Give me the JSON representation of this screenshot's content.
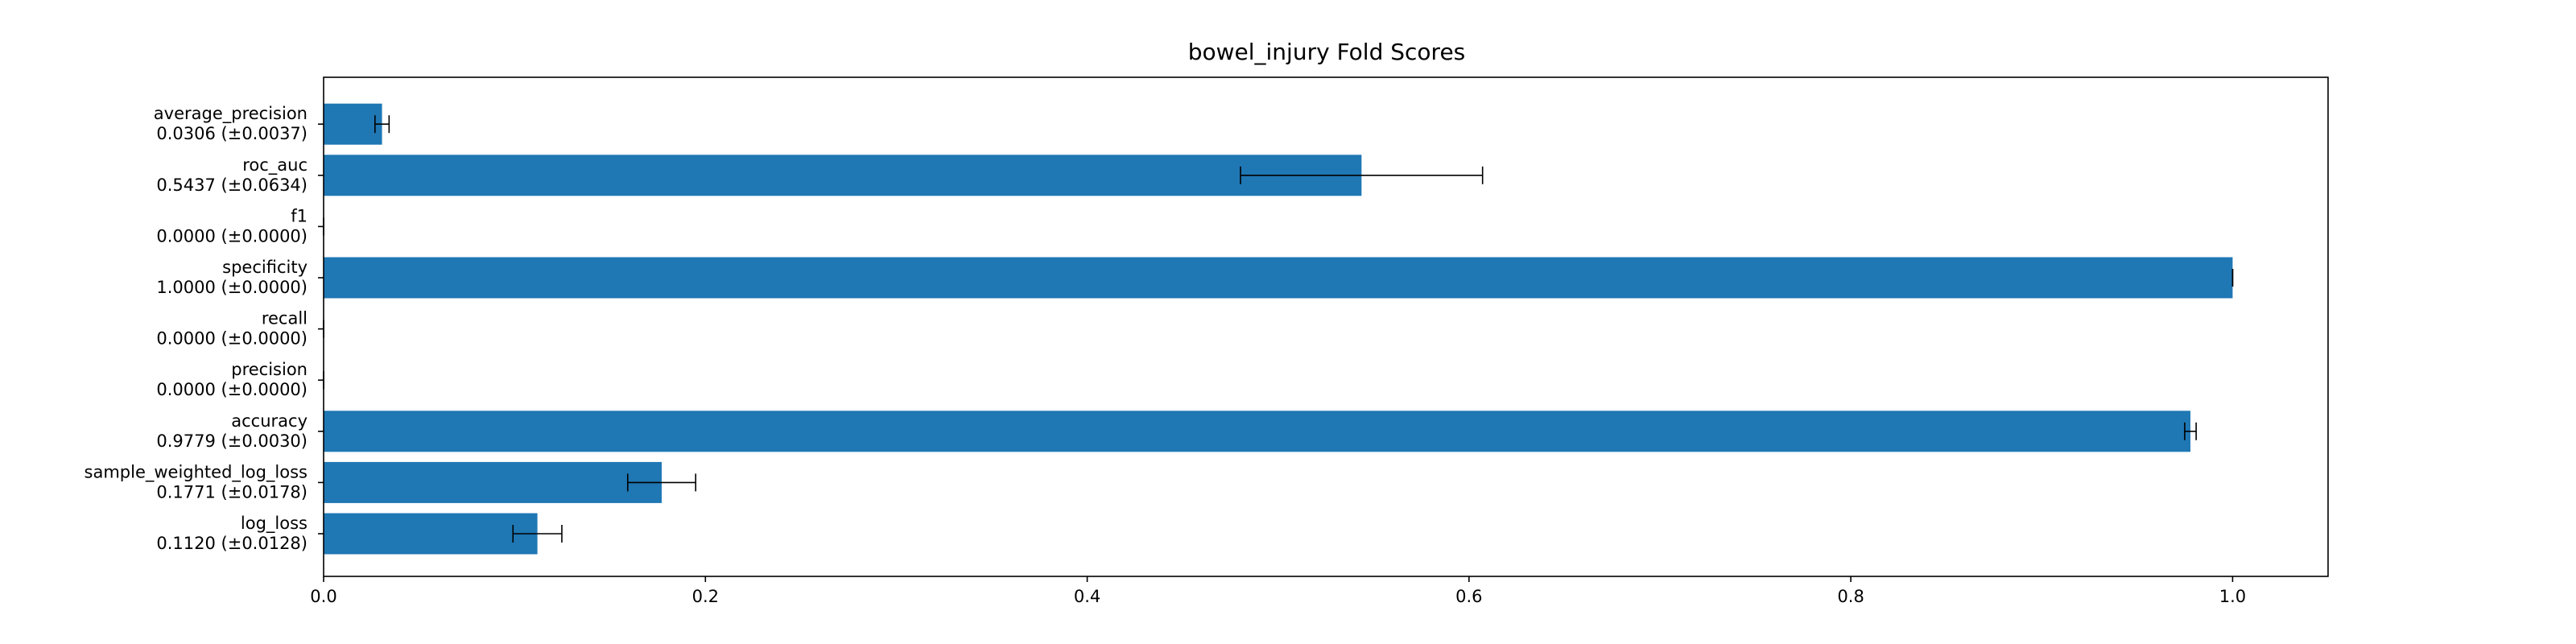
{
  "chart_data": {
    "type": "bar",
    "orientation": "horizontal",
    "title": "bowel_injury Fold Scores",
    "xlabel": "",
    "ylabel": "",
    "xlim": [
      0,
      1.05
    ],
    "xticks": [
      "0.0",
      "0.2",
      "0.4",
      "0.6",
      "0.8",
      "1.0"
    ],
    "grid": false,
    "bar_color": "#1f77b4",
    "categories": [
      "log_loss",
      "sample_weighted_log_loss",
      "accuracy",
      "precision",
      "recall",
      "specificity",
      "f1",
      "roc_auc",
      "average_precision"
    ],
    "value_labels": [
      "0.1120 (±0.0128)",
      "0.1771 (±0.0178)",
      "0.9779 (±0.0030)",
      "0.0000 (±0.0000)",
      "0.0000 (±0.0000)",
      "1.0000 (±0.0000)",
      "0.0000 (±0.0000)",
      "0.5437 (±0.0634)",
      "0.0306 (±0.0037)"
    ],
    "values": [
      0.112,
      0.1771,
      0.9779,
      0.0,
      0.0,
      1.0,
      0.0,
      0.5437,
      0.0306
    ],
    "errors": [
      0.0128,
      0.0178,
      0.003,
      0.0,
      0.0,
      0.0,
      0.0,
      0.0634,
      0.0037
    ]
  }
}
